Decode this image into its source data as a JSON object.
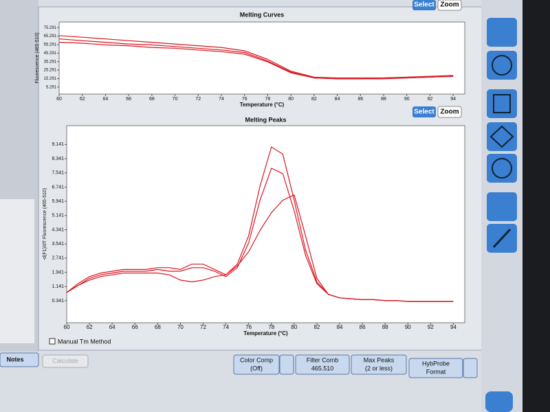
{
  "ui": {
    "select": "Select",
    "zoom": "Zoom",
    "manual_tm": "Manual Tm Method",
    "calculate": "Calculate",
    "notes": "Notes",
    "color_comp": [
      "Color Comp",
      "(Off)"
    ],
    "filter_comb": [
      "Filter Comb",
      "465.510"
    ],
    "max_peaks": [
      "Max Peaks",
      "(2 or less)"
    ],
    "hybprobe": [
      "HybProbe",
      "Format"
    ]
  },
  "chart_data": [
    {
      "type": "line",
      "title": "Melting Curves",
      "xlabel": "Temperature (°C)",
      "ylabel": "Fluorescence (465-510)",
      "x": [
        60,
        62,
        64,
        66,
        68,
        70,
        72,
        74,
        76,
        78,
        80,
        82,
        84,
        86,
        88,
        90,
        92,
        94
      ],
      "xlim": [
        60,
        95
      ],
      "xticks": [
        60,
        62,
        64,
        66,
        68,
        70,
        72,
        74,
        76,
        78,
        80,
        82,
        84,
        86,
        88,
        90,
        92,
        94
      ],
      "ylim": [
        -3,
        82
      ],
      "yticks": [
        5.291,
        15.291,
        25.291,
        35.291,
        45.291,
        55.291,
        65.291,
        75.291
      ],
      "series": [
        {
          "color": "#d8141e",
          "values": [
            66,
            64,
            62,
            60,
            58,
            56,
            54,
            52,
            48,
            38,
            24,
            17,
            16,
            16,
            16,
            17,
            18,
            19
          ]
        },
        {
          "color": "#d8141e",
          "values": [
            62,
            60,
            58,
            56,
            55,
            53,
            51,
            49,
            46,
            36,
            23,
            16,
            15,
            15,
            16,
            16,
            17,
            18
          ]
        },
        {
          "color": "#d8141e",
          "values": [
            58,
            57,
            55,
            54,
            52,
            51,
            49,
            47,
            44,
            35,
            22,
            16,
            15,
            15,
            15,
            16,
            17,
            18
          ]
        }
      ]
    },
    {
      "type": "line",
      "title": "Melting Peaks",
      "xlabel": "Temperature (°C)",
      "ylabel": "-d(F1)/dT Fluorescence (465-510)",
      "x": [
        60,
        61,
        62,
        63,
        64,
        65,
        66,
        67,
        68,
        69,
        70,
        71,
        72,
        73,
        74,
        75,
        76,
        77,
        78,
        79,
        80,
        81,
        82,
        83,
        84,
        85,
        86,
        87,
        88,
        89,
        90,
        91,
        92,
        93,
        94
      ],
      "xlim": [
        60,
        95
      ],
      "xticks": [
        60,
        62,
        64,
        66,
        68,
        70,
        72,
        74,
        76,
        78,
        80,
        82,
        84,
        86,
        88,
        90,
        92,
        94
      ],
      "ylim": [
        -0.9,
        10.2
      ],
      "yticks": [
        0.341,
        1.141,
        1.941,
        2.741,
        3.541,
        4.341,
        5.141,
        5.941,
        6.741,
        7.541,
        8.341,
        9.141
      ],
      "series": [
        {
          "color": "#d8141e",
          "values": [
            0.8,
            1.3,
            1.7,
            1.9,
            2.0,
            2.1,
            2.1,
            2.1,
            2.2,
            2.2,
            2.1,
            2.4,
            2.4,
            2.1,
            1.8,
            2.4,
            4.0,
            6.8,
            9.0,
            8.6,
            6.0,
            3.2,
            1.4,
            0.7,
            0.5,
            0.45,
            0.4,
            0.4,
            0.35,
            0.35,
            0.3,
            0.3,
            0.3,
            0.3,
            0.3
          ]
        },
        {
          "color": "#d8141e",
          "values": [
            0.8,
            1.2,
            1.6,
            1.8,
            1.9,
            2.0,
            2.0,
            2.0,
            2.1,
            2.0,
            2.0,
            2.2,
            2.2,
            2.0,
            1.7,
            2.2,
            3.6,
            6.0,
            7.8,
            7.5,
            5.4,
            2.9,
            1.3,
            0.7,
            0.5,
            0.45,
            0.4,
            0.4,
            0.35,
            0.35,
            0.3,
            0.3,
            0.3,
            0.3,
            0.3
          ]
        },
        {
          "color": "#d8141e",
          "values": [
            0.8,
            1.2,
            1.5,
            1.7,
            1.8,
            1.9,
            1.9,
            1.9,
            1.9,
            1.8,
            1.5,
            1.4,
            1.5,
            1.7,
            1.8,
            2.3,
            3.1,
            4.3,
            5.3,
            6.0,
            6.3,
            4.0,
            1.6,
            0.7,
            0.5,
            0.45,
            0.4,
            0.4,
            0.35,
            0.35,
            0.3,
            0.3,
            0.3,
            0.3,
            0.3
          ]
        }
      ]
    }
  ]
}
